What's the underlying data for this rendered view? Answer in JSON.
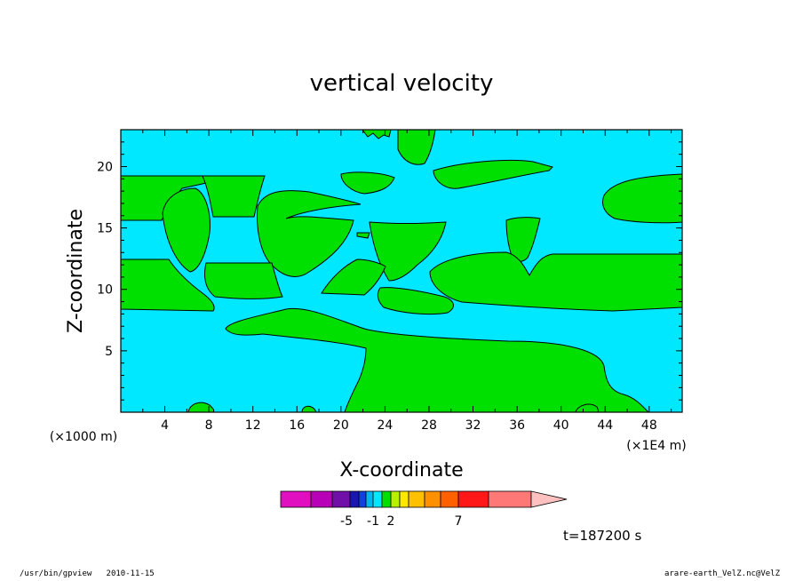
{
  "chart_data": {
    "type": "heatmap",
    "title": "vertical velocity",
    "xlabel": "X-coordinate",
    "ylabel": "Z-coordinate",
    "x_units_label": "(×1000 m)",
    "x_secondary_units_label": "(×1E4 m)",
    "xlim": [
      0,
      51
    ],
    "ylim": [
      0,
      23
    ],
    "x_ticks": [
      4,
      8,
      12,
      16,
      20,
      24,
      28,
      32,
      36,
      40,
      44,
      48
    ],
    "y_ticks": [
      5,
      10,
      15,
      20
    ],
    "time_label": "t=187200 s",
    "colorbar": {
      "tick_labels": [
        "-5",
        "-1",
        "2",
        "7"
      ],
      "colors": [
        "#e010c0",
        "#b800b8",
        "#7010a8",
        "#1818b0",
        "#1040e0",
        "#00b8f0",
        "#00e8ff",
        "#00e000",
        "#b8f000",
        "#ffe800",
        "#ffc000",
        "#ff9000",
        "#ff6000",
        "#ff1818",
        "#ff7878"
      ],
      "extend_color": "#ffc0c0"
    },
    "background_color": "#00e8ff",
    "positive_color": "#00e000"
  },
  "footer": {
    "left": "/usr/bin/gpview   2010-11-15",
    "right": "arare-earth_VelZ.nc@VelZ"
  }
}
